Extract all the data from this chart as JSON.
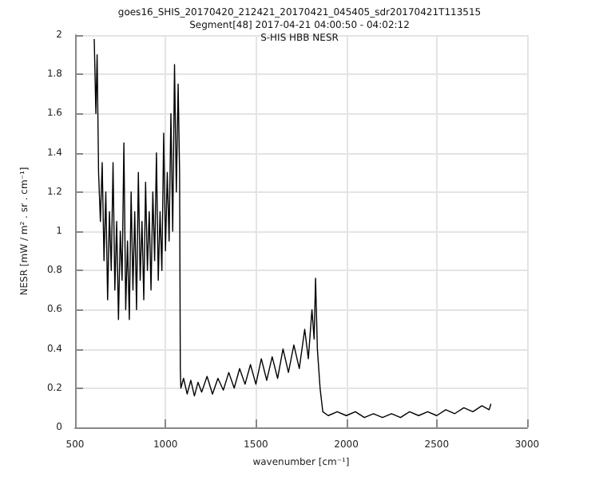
{
  "chart_data": {
    "type": "line",
    "title": "goes16_SHIS_20170420_212421_20170421_045405_sdr20170421T113515",
    "subtitle": "Segment[48] 2017-04-21 04:00:50 - 04:02:12\nS-HIS HBB NESR",
    "xlabel": "wavenumber [cm⁻¹]",
    "ylabel": "NESR [mW / m² . sr . cm⁻¹]",
    "series": [
      {
        "color": "#000000",
        "x": [
          606,
          615,
          622,
          630,
          640,
          650,
          660,
          670,
          680,
          690,
          700,
          710,
          720,
          730,
          740,
          750,
          760,
          770,
          780,
          790,
          800,
          810,
          820,
          830,
          840,
          850,
          860,
          870,
          880,
          890,
          900,
          910,
          920,
          930,
          940,
          950,
          960,
          970,
          980,
          990,
          1000,
          1010,
          1020,
          1030,
          1040,
          1050,
          1060,
          1070,
          1078,
          1082,
          1085,
          1100,
          1120,
          1140,
          1160,
          1180,
          1200,
          1230,
          1260,
          1290,
          1320,
          1350,
          1380,
          1410,
          1440,
          1470,
          1500,
          1530,
          1560,
          1590,
          1620,
          1650,
          1680,
          1710,
          1740,
          1770,
          1790,
          1810,
          1822,
          1830,
          1840,
          1855,
          1870,
          1900,
          1950,
          2000,
          2050,
          2100,
          2150,
          2200,
          2250,
          2300,
          2350,
          2400,
          2450,
          2500,
          2550,
          2600,
          2650,
          2700,
          2750,
          2790,
          2800
        ],
        "values": [
          1.98,
          1.6,
          1.9,
          1.3,
          1.05,
          1.35,
          0.85,
          1.2,
          0.65,
          1.1,
          0.8,
          1.35,
          0.7,
          1.05,
          0.55,
          1.0,
          0.75,
          1.45,
          0.6,
          0.95,
          0.55,
          1.2,
          0.7,
          1.1,
          0.6,
          1.3,
          0.75,
          1.05,
          0.65,
          1.25,
          0.8,
          1.1,
          0.7,
          1.2,
          0.85,
          1.4,
          0.75,
          1.1,
          0.8,
          1.5,
          0.9,
          1.3,
          0.95,
          1.6,
          1.0,
          1.85,
          1.2,
          1.75,
          1.3,
          0.3,
          0.2,
          0.25,
          0.17,
          0.24,
          0.16,
          0.23,
          0.18,
          0.26,
          0.17,
          0.25,
          0.19,
          0.28,
          0.2,
          0.3,
          0.22,
          0.32,
          0.22,
          0.35,
          0.24,
          0.36,
          0.25,
          0.4,
          0.28,
          0.42,
          0.3,
          0.5,
          0.35,
          0.6,
          0.45,
          0.76,
          0.4,
          0.2,
          0.08,
          0.06,
          0.08,
          0.06,
          0.08,
          0.05,
          0.07,
          0.05,
          0.07,
          0.05,
          0.08,
          0.06,
          0.08,
          0.06,
          0.09,
          0.07,
          0.1,
          0.08,
          0.11,
          0.09,
          0.12
        ]
      }
    ],
    "xlim": [
      500,
      3000
    ],
    "xticks": [
      500,
      1000,
      1500,
      2000,
      2500,
      3000
    ],
    "ylim": [
      0,
      2
    ],
    "yticks": [
      0,
      0.2,
      0.4,
      0.6,
      0.8,
      1,
      1.2,
      1.4,
      1.6,
      1.8,
      2
    ],
    "grid": true,
    "marker": "none",
    "line_style": "solid"
  }
}
